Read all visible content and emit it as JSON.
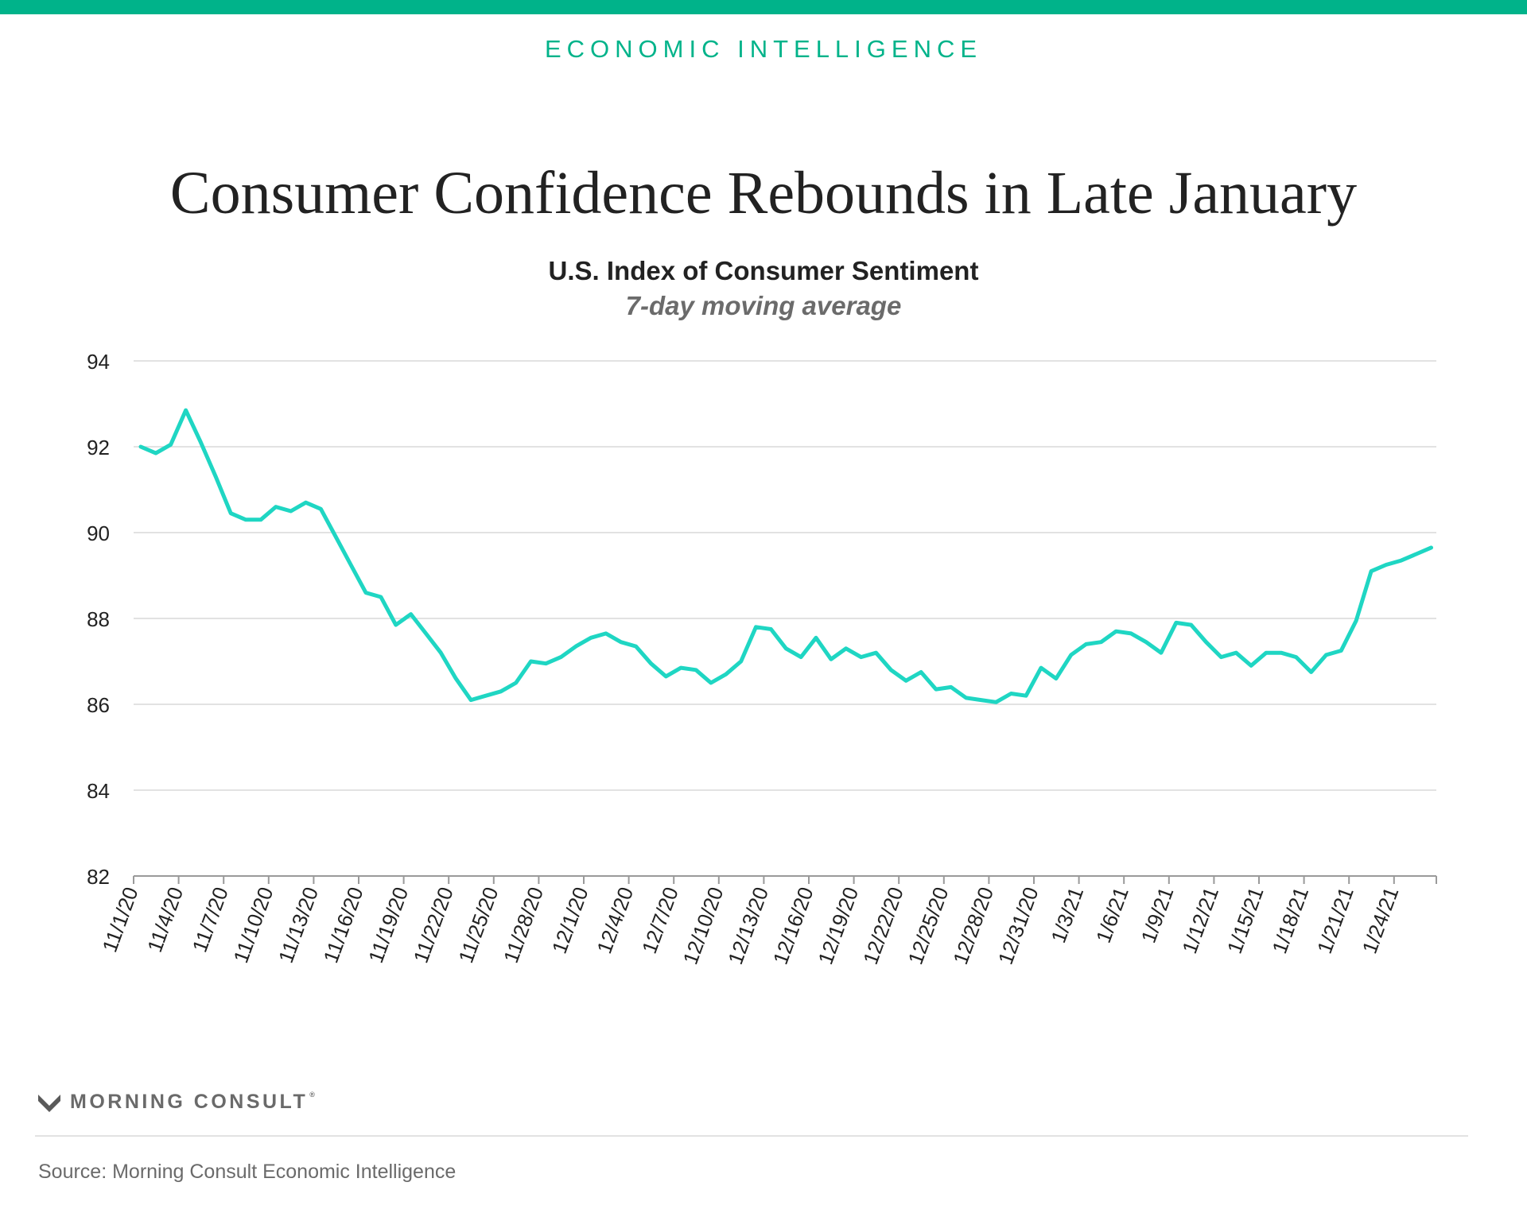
{
  "colors": {
    "accent": "#00b38a",
    "line": "#1fd6c3",
    "grid": "#d9d9d9",
    "axis": "#9a9a9a",
    "text": "#222222"
  },
  "header": {
    "section_label": "ECONOMIC INTELLIGENCE"
  },
  "title": "Consumer Confidence Rebounds in Late January",
  "footer": {
    "brand": "MORNING CONSULT",
    "brand_mark": "®",
    "source": "Source: Morning Consult Economic Intelligence"
  },
  "chart_data": {
    "type": "line",
    "title": "U.S. Index of Consumer Sentiment",
    "subtitle": "7-day moving average",
    "xlabel": "",
    "ylabel": "",
    "ylim": [
      82,
      94
    ],
    "yticks": [
      82,
      84,
      86,
      88,
      90,
      92,
      94
    ],
    "grid": true,
    "x_start": "11/1/20",
    "x_tick_labels": [
      "11/1/20",
      "11/4/20",
      "11/7/20",
      "11/10/20",
      "11/13/20",
      "11/16/20",
      "11/19/20",
      "11/22/20",
      "11/25/20",
      "11/28/20",
      "12/1/20",
      "12/4/20",
      "12/7/20",
      "12/10/20",
      "12/13/20",
      "12/16/20",
      "12/19/20",
      "12/22/20",
      "12/25/20",
      "12/28/20",
      "12/31/20",
      "1/3/21",
      "1/6/21",
      "1/9/21",
      "1/12/21",
      "1/15/21",
      "1/18/21",
      "1/21/21",
      "1/24/21"
    ],
    "series": [
      {
        "values": [
          92.0,
          91.85,
          92.05,
          92.85,
          92.1,
          91.3,
          90.45,
          90.3,
          90.3,
          90.6,
          90.5,
          90.7,
          90.55,
          89.9,
          89.25,
          88.6,
          88.5,
          87.85,
          88.1,
          87.65,
          87.2,
          86.6,
          86.1,
          86.2,
          86.3,
          86.5,
          87.0,
          86.95,
          87.1,
          87.35,
          87.55,
          87.65,
          87.45,
          87.35,
          86.95,
          86.65,
          86.85,
          86.8,
          86.5,
          86.7,
          87.0,
          87.8,
          87.75,
          87.3,
          87.1,
          87.55,
          87.05,
          87.3,
          87.1,
          87.2,
          86.8,
          86.55,
          86.75,
          86.35,
          86.4,
          86.15,
          86.1,
          86.05,
          86.25,
          86.2,
          86.85,
          86.6,
          87.15,
          87.4,
          87.45,
          87.7,
          87.65,
          87.45,
          87.2,
          87.9,
          87.85,
          87.45,
          87.1,
          87.2,
          86.9,
          87.2,
          87.2,
          87.1,
          86.75,
          87.15,
          87.25,
          87.95,
          89.1,
          89.25,
          89.35,
          89.5,
          89.65
        ]
      }
    ]
  }
}
